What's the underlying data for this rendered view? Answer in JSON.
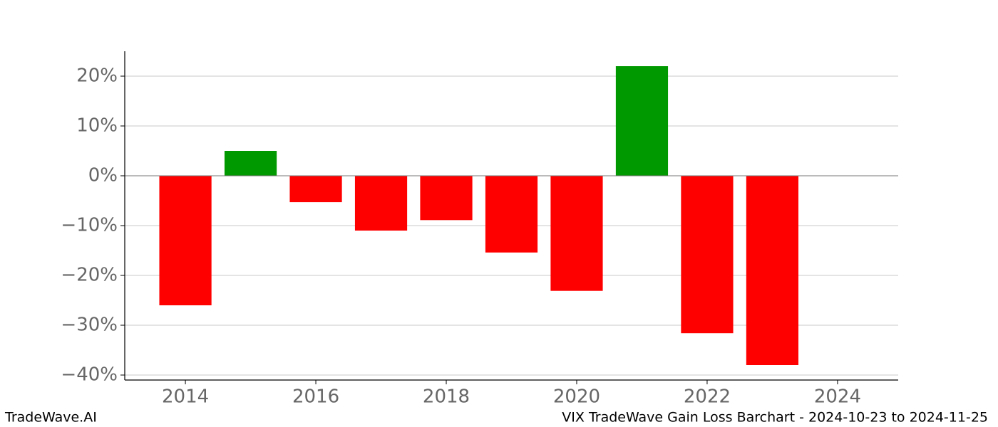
{
  "chart_data": {
    "type": "bar",
    "x": [
      2014,
      2015,
      2016,
      2017,
      2018,
      2019,
      2020,
      2021,
      2022,
      2023
    ],
    "values": [
      -26,
      5,
      -5.3,
      -11,
      -8.9,
      -15.4,
      -23.1,
      22,
      -31.6,
      -38
    ],
    "colors": [
      "#ff0000",
      "#009900",
      "#ff0000",
      "#ff0000",
      "#ff0000",
      "#ff0000",
      "#ff0000",
      "#009900",
      "#ff0000",
      "#ff0000"
    ],
    "xlim": [
      2013.07,
      2024.93
    ],
    "xticks": [
      2014,
      2016,
      2018,
      2020,
      2022,
      2024
    ],
    "ylim": [
      -41,
      25
    ],
    "yticks": [
      {
        "value": 20,
        "label": "20%"
      },
      {
        "value": 10,
        "label": "10%"
      },
      {
        "value": 0,
        "label": "0%"
      },
      {
        "value": -10,
        "label": "−10%"
      },
      {
        "value": -20,
        "label": "−20%"
      },
      {
        "value": -30,
        "label": "−30%"
      },
      {
        "value": -40,
        "label": "−40%"
      }
    ],
    "grid": true,
    "footer_left": "TradeWave.AI",
    "footer_right": "VIX TradeWave Gain Loss Barchart - 2024-10-23 to 2024-11-25"
  }
}
